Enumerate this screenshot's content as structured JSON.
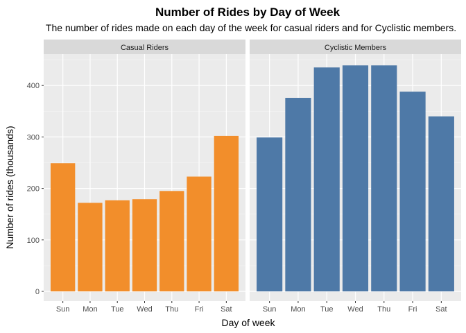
{
  "chart_data": {
    "type": "bar",
    "title": "Number of Rides by Day of Week",
    "subtitle": "The number of rides made on each day of the week for casual riders and for Cyclistic members.",
    "xlabel": "Day of week",
    "ylabel": "Number of rides (thousands)",
    "categories": [
      "Sun",
      "Mon",
      "Tue",
      "Wed",
      "Thu",
      "Fri",
      "Sat"
    ],
    "ylim": [
      0,
      450
    ],
    "yticks": [
      0,
      100,
      200,
      300,
      400
    ],
    "grid": true,
    "series": [
      {
        "name": "Casual Riders",
        "color": "#f28e2b",
        "values": [
          249,
          172,
          177,
          179,
          195,
          223,
          302
        ]
      },
      {
        "name": "Cyclistic Members",
        "color": "#4e79a7",
        "values": [
          299,
          376,
          435,
          439,
          439,
          388,
          340
        ]
      }
    ]
  }
}
